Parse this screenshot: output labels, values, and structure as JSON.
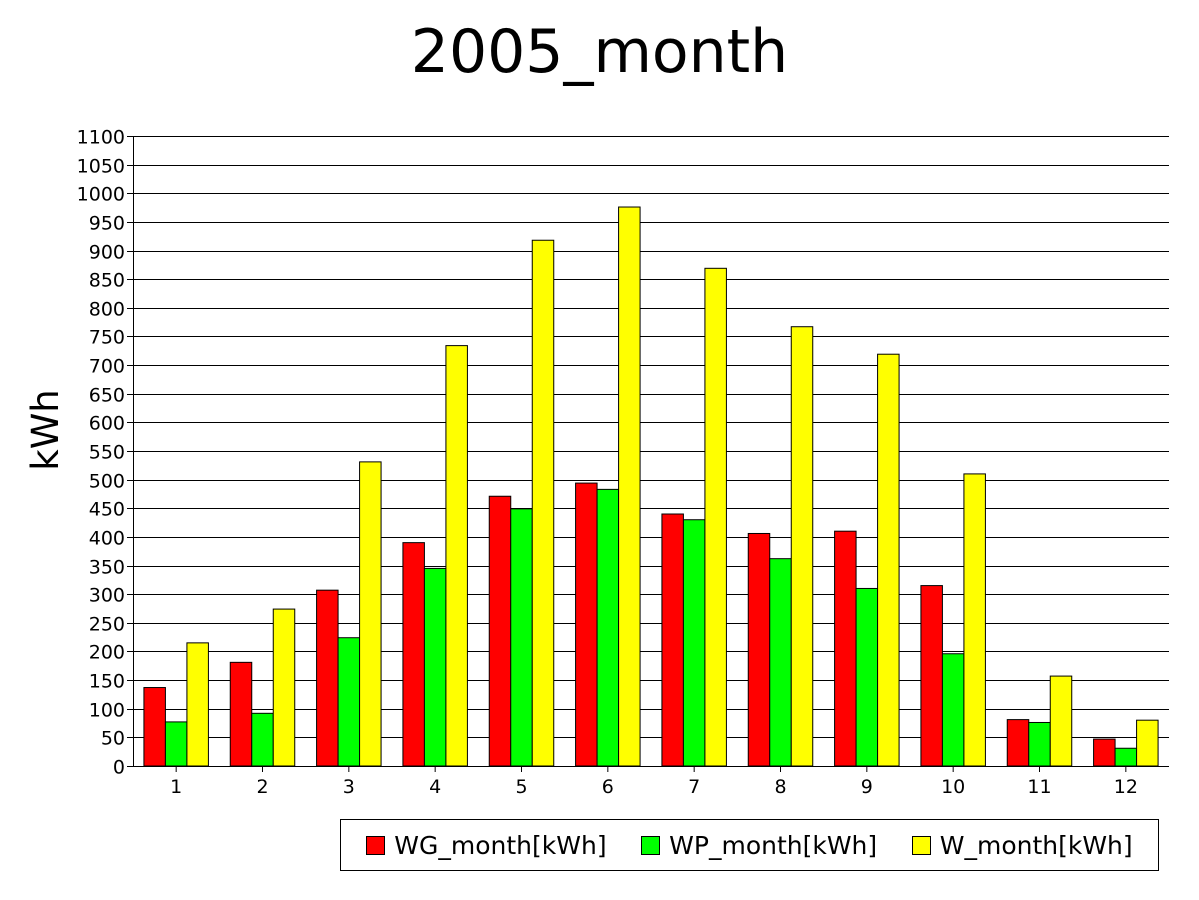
{
  "chart_data": {
    "type": "bar",
    "title": "2005_month",
    "xlabel": "",
    "ylabel": "kWh",
    "ylim": [
      0,
      1100
    ],
    "ytick_step": 50,
    "grid": true,
    "legend_position": "bottom-right",
    "categories": [
      "1",
      "2",
      "3",
      "4",
      "5",
      "6",
      "7",
      "8",
      "9",
      "10",
      "11",
      "12"
    ],
    "series": [
      {
        "name": "WG_month[kWh]",
        "color": "#ff0000",
        "values": [
          137,
          181,
          307,
          390,
          471,
          494,
          440,
          406,
          410,
          315,
          81,
          47
        ]
      },
      {
        "name": "WP_month[kWh]",
        "color": "#00ff00",
        "values": [
          77,
          92,
          224,
          345,
          449,
          483,
          430,
          362,
          310,
          196,
          76,
          31
        ]
      },
      {
        "name": "W_month[kWh]",
        "color": "#ffff00",
        "values": [
          215,
          274,
          531,
          734,
          918,
          976,
          869,
          767,
          719,
          510,
          157,
          80
        ]
      }
    ]
  }
}
